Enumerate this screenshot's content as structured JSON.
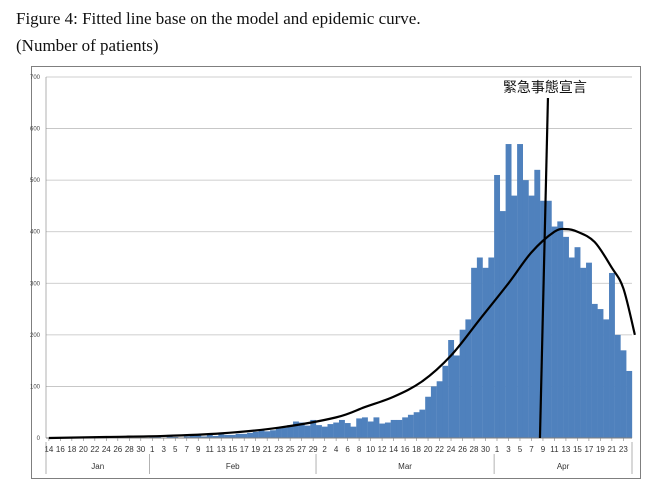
{
  "caption": {
    "line1": "Figure 4: Fitted line base on the model and epidemic curve.",
    "line2": "(Number of patients)"
  },
  "chart_data": {
    "type": "bar",
    "ylim": [
      0,
      700
    ],
    "yticks": [
      0,
      100,
      200,
      300,
      400,
      500,
      600,
      700
    ],
    "grid": true,
    "bar_color": "#4f81bd",
    "fit_line_color": "#000000",
    "annotation_line_color": "#000000",
    "annotation": {
      "text": "緊急事態宣言",
      "at_day_index": 86
    },
    "x_tick_labels": [
      "14",
      "16",
      "18",
      "20",
      "22",
      "24",
      "26",
      "28",
      "30",
      "1",
      "3",
      "5",
      "7",
      "9",
      "11",
      "13",
      "15",
      "17",
      "19",
      "21",
      "23",
      "25",
      "27",
      "29",
      "2",
      "4",
      "6",
      "8",
      "10",
      "12",
      "14",
      "16",
      "18",
      "20",
      "22",
      "24",
      "26",
      "28",
      "30",
      "1",
      "3",
      "5",
      "7",
      "9",
      "11",
      "13",
      "15",
      "17",
      "19",
      "21",
      "23"
    ],
    "months": [
      {
        "label": "Jan",
        "start": 0,
        "end": 17
      },
      {
        "label": "Feb",
        "start": 18,
        "end": 46
      },
      {
        "label": "Mar",
        "start": 47,
        "end": 77
      },
      {
        "label": "Apr",
        "start": 78,
        "end": 101
      }
    ],
    "values": [
      0,
      0,
      0,
      0,
      0,
      0,
      1,
      0,
      0,
      1,
      0,
      0,
      1,
      0,
      0,
      1,
      1,
      0,
      2,
      2,
      1,
      6,
      2,
      1,
      3,
      4,
      5,
      3,
      6,
      4,
      7,
      6,
      6,
      8,
      8,
      10,
      12,
      15,
      13,
      15,
      20,
      20,
      25,
      32,
      30,
      24,
      35,
      25,
      22,
      27,
      30,
      35,
      29,
      22,
      38,
      40,
      32,
      40,
      28,
      30,
      35,
      35,
      40,
      45,
      50,
      55,
      80,
      100,
      110,
      140,
      190,
      160,
      210,
      230,
      330,
      350,
      330,
      350,
      510,
      440,
      570,
      470,
      570,
      500,
      470,
      520,
      460,
      460,
      410,
      420,
      390,
      350,
      370,
      330,
      340,
      260,
      250,
      230,
      320,
      200,
      170,
      130
    ],
    "fitted_curve": [
      [
        0,
        0
      ],
      [
        10,
        2
      ],
      [
        20,
        4
      ],
      [
        30,
        9
      ],
      [
        40,
        20
      ],
      [
        50,
        40
      ],
      [
        55,
        60
      ],
      [
        60,
        80
      ],
      [
        65,
        110
      ],
      [
        70,
        160
      ],
      [
        75,
        230
      ],
      [
        80,
        300
      ],
      [
        84,
        360
      ],
      [
        88,
        400
      ],
      [
        90,
        405
      ],
      [
        92,
        400
      ],
      [
        95,
        380
      ],
      [
        98,
        330
      ],
      [
        100,
        290
      ],
      [
        102,
        200
      ]
    ]
  }
}
